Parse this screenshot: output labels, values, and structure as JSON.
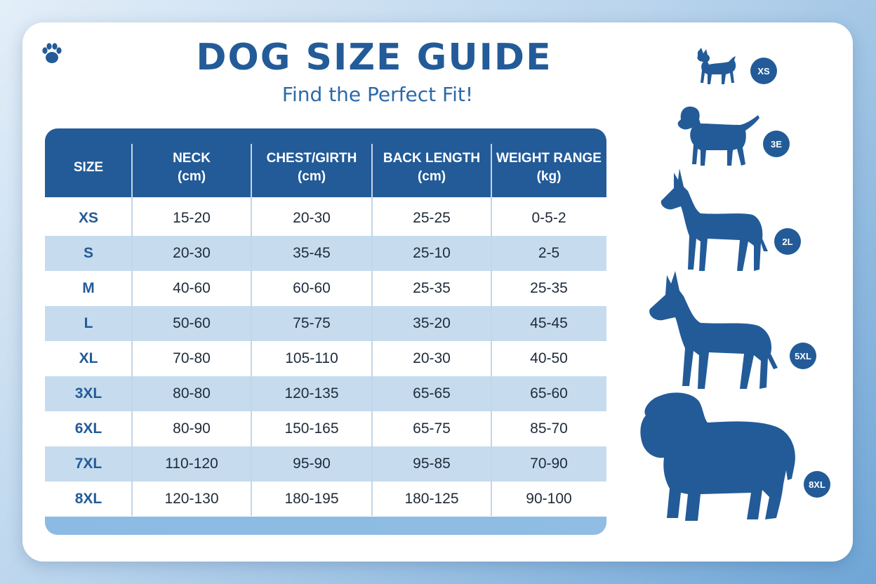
{
  "header": {
    "title": "DOG SIZE GUIDE",
    "subtitle": "Find the Perfect Fit!"
  },
  "icons": {
    "corner": "paw-icon"
  },
  "table": {
    "columns": [
      {
        "line1": "SIZE",
        "line2": ""
      },
      {
        "line1": "NECK",
        "line2": "(cm)"
      },
      {
        "line1": "CHEST/GIRTH",
        "line2": "(cm)"
      },
      {
        "line1": "BACK LENGTH",
        "line2": "(cm)"
      },
      {
        "line1": "WEIGHT RANGE",
        "line2": "(kg)"
      }
    ],
    "rows": [
      [
        "XS",
        "15-20",
        "20-30",
        "25-25",
        "0-5-2"
      ],
      [
        "S",
        "20-30",
        "35-45",
        "25-10",
        "2-5"
      ],
      [
        "M",
        "40-60",
        "60-60",
        "25-35",
        "25-35"
      ],
      [
        "L",
        "50-60",
        "75-75",
        "35-20",
        "45-45"
      ],
      [
        "XL",
        "70-80",
        "105-110",
        "20-30",
        "40-50"
      ],
      [
        "3XL",
        "80-80",
        "120-135",
        "65-65",
        "65-60"
      ],
      [
        "6XL",
        "80-90",
        "150-165",
        "65-75",
        "85-70"
      ],
      [
        "7XL",
        "110-120",
        "95-90",
        "95-85",
        "70-90"
      ],
      [
        "8XL",
        "120-130",
        "180-195",
        "180-125",
        "90-100"
      ]
    ]
  },
  "dogs": [
    {
      "badge": "XS",
      "icon": "chihuahua-silhouette-icon"
    },
    {
      "badge": "3E",
      "icon": "beagle-silhouette-icon"
    },
    {
      "badge": "2L",
      "icon": "great-dane-silhouette-icon"
    },
    {
      "badge": "5XL",
      "icon": "great-dane-large-silhouette-icon"
    },
    {
      "badge": "8XL",
      "icon": "mastiff-silhouette-icon"
    }
  ],
  "colors": {
    "primary": "#235b98",
    "row_alt": "#c6dcee",
    "footer": "#8bbbe3"
  }
}
